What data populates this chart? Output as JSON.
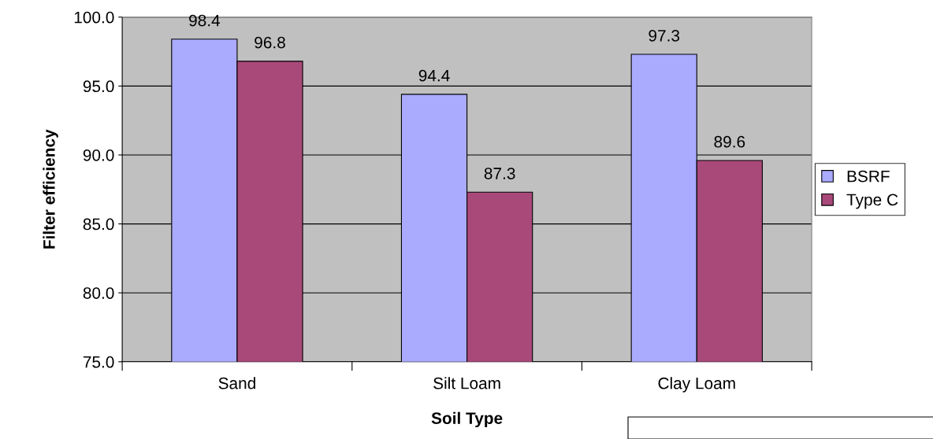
{
  "chart_data": {
    "type": "bar",
    "xlabel": "Soil Type",
    "ylabel": "Filter efficiency",
    "categories": [
      "Sand",
      "Silt Loam",
      "Clay Loam"
    ],
    "series": [
      {
        "name": "BSRF",
        "color": "#aaaaff",
        "values": [
          98.4,
          94.4,
          97.3
        ]
      },
      {
        "name": "Type C",
        "color": "#a9497a",
        "values": [
          96.8,
          87.3,
          89.6
        ]
      }
    ],
    "ylim": [
      75,
      100
    ],
    "yticks": [
      {
        "value": 75,
        "label": "75.0"
      },
      {
        "value": 80,
        "label": "80.0"
      },
      {
        "value": 85,
        "label": "85.0"
      },
      {
        "value": 90,
        "label": "90.0"
      },
      {
        "value": 95,
        "label": "95.0"
      },
      {
        "value": 100,
        "label": "100.0"
      }
    ],
    "grid": "y",
    "legend": "right",
    "data_labels": true
  }
}
